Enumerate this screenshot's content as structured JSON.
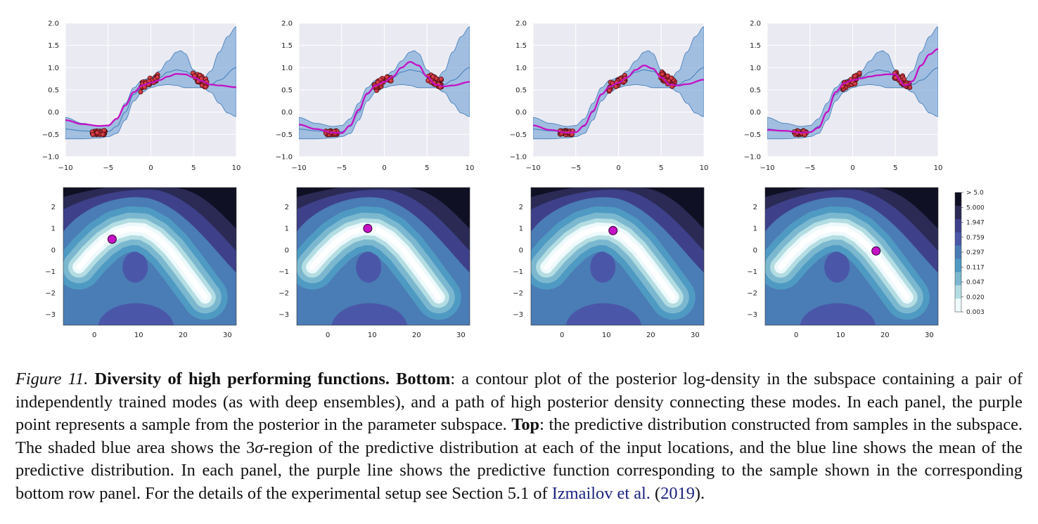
{
  "figure": {
    "label": "Figure 11.",
    "heading": "Diversity of high performing functions.",
    "caption_bottom_label": "Bottom",
    "caption_part1": ": a contour plot of the posterior log-density in the subspace containing a pair of independently trained modes (as with deep ensembles), and a path of high posterior density connecting these modes. In each panel, the purple point represents a sample from the posterior in the parameter subspace. ",
    "caption_top_label": "Top",
    "caption_part2": ": the predictive distribution constructed from samples in the subspace. The shaded blue area shows the 3",
    "sigma": "σ",
    "caption_part3": "-region of the predictive distribution at each of the input locations, and the blue line shows the mean of the predictive distribution. In each panel, the purple line shows the predictive function corresponding to the sample shown in the corresponding bottom row panel. For the details of the experimental setup see Section 5.1 of ",
    "cite_author": "Izmailov et al.",
    "cite_open": " (",
    "cite_year": "2019",
    "cite_close": ")."
  },
  "colors": {
    "plot_bg": "#eaeaf2",
    "band_fill": "#7aa6d6",
    "band_edge": "#3d7ab8",
    "mean_line": "#3d7ab8",
    "sample_line": "#c412c4",
    "points": "#d0343a",
    "point_marker": "#c412c4"
  },
  "chart_data": [
    {
      "type": "line",
      "row": "top",
      "panel": 1,
      "xlim": [
        -10,
        10
      ],
      "ylim": [
        -1.0,
        2.0
      ],
      "xticks": [
        -10,
        -5,
        0,
        5,
        10
      ],
      "xtick_labels": [
        "−10",
        "−5",
        "0",
        "5",
        "10"
      ],
      "yticks": [
        -1.0,
        -0.5,
        0.0,
        0.5,
        1.0,
        1.5,
        2.0
      ],
      "ytick_labels": [
        "−1.0",
        "−0.5",
        "0.0",
        "0.5",
        "1.0",
        "1.5",
        "2.0"
      ],
      "sample": {
        "x": [
          -10,
          -8,
          -6,
          -5,
          -4,
          -3,
          -2,
          -1,
          0,
          1,
          2,
          3,
          4,
          5,
          6,
          7,
          8,
          10
        ],
        "y": [
          -0.18,
          -0.27,
          -0.31,
          -0.3,
          -0.15,
          0.15,
          0.45,
          0.6,
          0.66,
          0.72,
          0.8,
          0.86,
          0.85,
          0.78,
          0.7,
          0.62,
          0.6,
          0.56
        ]
      }
    },
    {
      "type": "line",
      "row": "top",
      "panel": 2,
      "xlim": [
        -10,
        10
      ],
      "ylim": [
        -1.0,
        2.0
      ],
      "xticks": [
        -10,
        -5,
        0,
        5,
        10
      ],
      "xtick_labels": [
        "−10",
        "−5",
        "0",
        "5",
        "10"
      ],
      "yticks": [
        -1.0,
        -0.5,
        0.0,
        0.5,
        1.0,
        1.5,
        2.0
      ],
      "ytick_labels": [
        "−1.0",
        "−0.5",
        "0.0",
        "0.5",
        "1.0",
        "1.5",
        "2.0"
      ],
      "sample": {
        "x": [
          -10,
          -8,
          -6,
          -5,
          -4,
          -3,
          -2,
          -1,
          0,
          1,
          2,
          3,
          4,
          5,
          6,
          7,
          8,
          10
        ],
        "y": [
          -0.28,
          -0.38,
          -0.46,
          -0.47,
          -0.3,
          0.05,
          0.42,
          0.6,
          0.68,
          0.8,
          1.0,
          1.13,
          1.05,
          0.8,
          0.62,
          0.58,
          0.6,
          0.68
        ]
      }
    },
    {
      "type": "line",
      "row": "top",
      "panel": 3,
      "xlim": [
        -10,
        10
      ],
      "ylim": [
        -1.0,
        2.0
      ],
      "xticks": [
        -10,
        -5,
        0,
        5,
        10
      ],
      "xtick_labels": [
        "−10",
        "−5",
        "0",
        "5",
        "10"
      ],
      "yticks": [
        -1.0,
        -0.5,
        0.0,
        0.5,
        1.0,
        1.5,
        2.0
      ],
      "ytick_labels": [
        "−1.0",
        "−0.5",
        "0.0",
        "0.5",
        "1.0",
        "1.5",
        "2.0"
      ],
      "sample": {
        "x": [
          -10,
          -8,
          -6,
          -5,
          -4,
          -3,
          -2,
          -1,
          0,
          1,
          2,
          3,
          4,
          5,
          6,
          7,
          8,
          10
        ],
        "y": [
          -0.3,
          -0.4,
          -0.46,
          -0.45,
          -0.3,
          0.02,
          0.4,
          0.58,
          0.66,
          0.78,
          0.95,
          1.05,
          0.98,
          0.78,
          0.62,
          0.6,
          0.63,
          0.73
        ]
      }
    },
    {
      "type": "line",
      "row": "top",
      "panel": 4,
      "xlim": [
        -10,
        10
      ],
      "ylim": [
        -1.0,
        2.0
      ],
      "xticks": [
        -10,
        -5,
        0,
        5,
        10
      ],
      "xtick_labels": [
        "−10",
        "−5",
        "0",
        "5",
        "10"
      ],
      "yticks": [
        -1.0,
        -0.5,
        0.0,
        0.5,
        1.0,
        1.5,
        2.0
      ],
      "ytick_labels": [
        "−1.0",
        "−0.5",
        "0.0",
        "0.5",
        "1.0",
        "1.5",
        "2.0"
      ],
      "sample": {
        "x": [
          -10,
          -8,
          -6,
          -5,
          -4,
          -3,
          -2,
          -1,
          0,
          1,
          2,
          3,
          4,
          5,
          5.5,
          6,
          6.5,
          7,
          8,
          9,
          10
        ],
        "y": [
          -0.4,
          -0.42,
          -0.46,
          -0.45,
          -0.35,
          0.0,
          0.45,
          0.65,
          0.72,
          0.76,
          0.8,
          0.83,
          0.85,
          0.85,
          0.72,
          0.6,
          0.62,
          0.7,
          1.05,
          1.3,
          1.42
        ]
      }
    },
    {
      "type": "heatmap",
      "row": "bottom",
      "panel": 1,
      "xlim": [
        -7,
        32
      ],
      "ylim": [
        -3.5,
        2.9
      ],
      "xticks": [
        0,
        10,
        20,
        30
      ],
      "xtick_labels": [
        "0",
        "10",
        "20",
        "30"
      ],
      "yticks": [
        2,
        1,
        0,
        -1,
        -2,
        -3
      ],
      "ytick_labels": [
        "2",
        "1",
        "0",
        "−1",
        "−2",
        "−3"
      ],
      "sample_point": {
        "x": 4,
        "y": 0.5
      }
    },
    {
      "type": "heatmap",
      "row": "bottom",
      "panel": 2,
      "xlim": [
        -7,
        32
      ],
      "ylim": [
        -3.5,
        2.9
      ],
      "xticks": [
        0,
        10,
        20,
        30
      ],
      "xtick_labels": [
        "0",
        "10",
        "20",
        "30"
      ],
      "yticks": [
        2,
        1,
        0,
        -1,
        -2,
        -3
      ],
      "ytick_labels": [
        "2",
        "1",
        "0",
        "−1",
        "−2",
        "−3"
      ],
      "sample_point": {
        "x": 9,
        "y": 1.0
      }
    },
    {
      "type": "heatmap",
      "row": "bottom",
      "panel": 3,
      "xlim": [
        -7,
        32
      ],
      "ylim": [
        -3.5,
        2.9
      ],
      "xticks": [
        0,
        10,
        20,
        30
      ],
      "xtick_labels": [
        "0",
        "10",
        "20",
        "30"
      ],
      "yticks": [
        2,
        1,
        0,
        -1,
        -2,
        -3
      ],
      "ytick_labels": [
        "2",
        "1",
        "0",
        "−1",
        "−2",
        "−3"
      ],
      "sample_point": {
        "x": 11.5,
        "y": 0.9
      }
    },
    {
      "type": "heatmap",
      "row": "bottom",
      "panel": 4,
      "xlim": [
        -7,
        32
      ],
      "ylim": [
        -3.5,
        2.9
      ],
      "xticks": [
        0,
        10,
        20,
        30
      ],
      "xtick_labels": [
        "0",
        "10",
        "20",
        "30"
      ],
      "yticks": [
        2,
        1,
        0,
        -1,
        -2,
        -3
      ],
      "ytick_labels": [
        "2",
        "1",
        "0",
        "−1",
        "−2",
        "−3"
      ],
      "sample_point": {
        "x": 18,
        "y": -0.05
      }
    }
  ],
  "colorbar": {
    "tick_labels": [
      "> 5.0",
      "5.000",
      "1.947",
      "0.759",
      "0.297",
      "0.117",
      "0.047",
      "0.020",
      "0.003"
    ],
    "colors": [
      "#0f1023",
      "#2a2a55",
      "#3e4189",
      "#4a57a8",
      "#4a7cb5",
      "#4f9ac3",
      "#7bb8cf",
      "#b3dde2",
      "#eef9fb"
    ]
  }
}
